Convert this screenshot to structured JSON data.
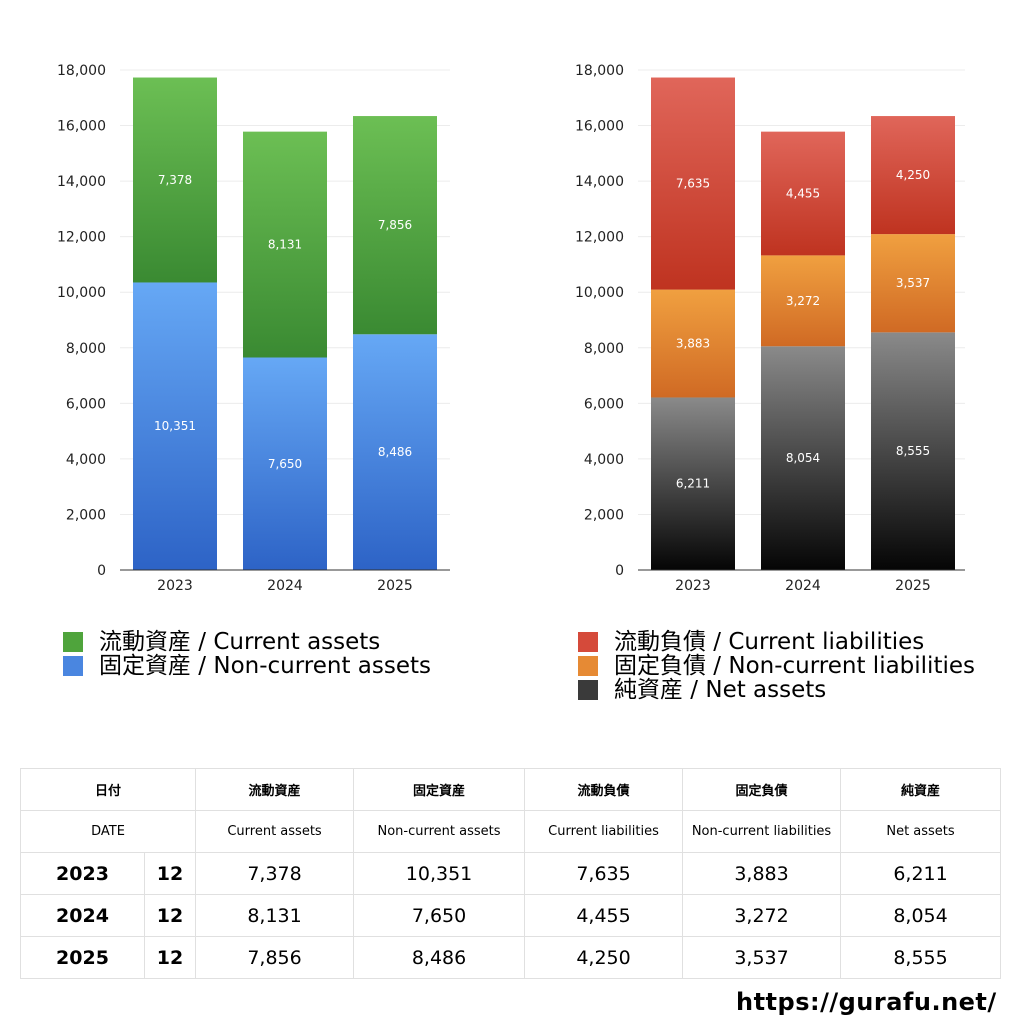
{
  "chart_data": [
    {
      "type": "bar",
      "stacked": true,
      "categories": [
        "2023",
        "2024",
        "2025"
      ],
      "ylim": [
        0,
        18000
      ],
      "yticks": [
        "0",
        "2,000",
        "4,000",
        "6,000",
        "8,000",
        "10,000",
        "12,000",
        "14,000",
        "16,000",
        "18,000"
      ],
      "grid": true,
      "series": [
        {
          "name": "固定資産 / Non-current assets",
          "values": [
            10351,
            7650,
            8486
          ],
          "labels": [
            "10,351",
            "7,650",
            "8,486"
          ],
          "color_top": "#66a8f5",
          "color_bottom": "#2d63c6"
        },
        {
          "name": "流動資産 / Current assets",
          "values": [
            7378,
            8131,
            7856
          ],
          "labels": [
            "7,378",
            "8,131",
            "7,856"
          ],
          "color_top": "#6cbf54",
          "color_bottom": "#3a8a32"
        }
      ],
      "legend_position": "bottom"
    },
    {
      "type": "bar",
      "stacked": true,
      "categories": [
        "2023",
        "2024",
        "2025"
      ],
      "ylim": [
        0,
        18000
      ],
      "yticks": [
        "0",
        "2,000",
        "4,000",
        "6,000",
        "8,000",
        "10,000",
        "12,000",
        "14,000",
        "16,000",
        "18,000"
      ],
      "grid": true,
      "series": [
        {
          "name": "純資産 / Net assets",
          "values": [
            6211,
            8054,
            8555
          ],
          "labels": [
            "6,211",
            "8,054",
            "8,555"
          ],
          "color_top": "#8a8a8a",
          "color_bottom": "#050505"
        },
        {
          "name": "固定負債 / Non-current liabilities",
          "values": [
            3883,
            3272,
            3537
          ],
          "labels": [
            "3,883",
            "3,272",
            "3,537"
          ],
          "color_top": "#f0a040",
          "color_bottom": "#d06a24"
        },
        {
          "name": "流動負債 / Current liabilities",
          "values": [
            7635,
            4455,
            4250
          ],
          "labels": [
            "7,635",
            "4,455",
            "4,250"
          ],
          "color_top": "#e0665a",
          "color_bottom": "#bf3320"
        }
      ],
      "legend_position": "bottom"
    }
  ],
  "legend_left": [
    {
      "label": "流動資産 / Current assets",
      "color": "#4fa43c"
    },
    {
      "label": "固定資産 / Non-current assets",
      "color": "#4a86e0"
    }
  ],
  "legend_right": [
    {
      "label": "流動負債 / Current liabilities",
      "color": "#d54a3a"
    },
    {
      "label": "固定負債 / Non-current liabilities",
      "color": "#e68a34"
    },
    {
      "label": "純資産 / Net assets",
      "color": "#3a3a3a"
    }
  ],
  "table": {
    "header_jp": [
      "日付",
      "流動資産",
      "固定資産",
      "流動負債",
      "固定負債",
      "純資産"
    ],
    "header_en": [
      "DATE",
      "Current assets",
      "Non-current assets",
      "Current liabilities",
      "Non-current liabilities",
      "Net assets"
    ],
    "rows": [
      {
        "year": "2023",
        "month": "12",
        "values": [
          "7,378",
          "10,351",
          "7,635",
          "3,883",
          "6,211"
        ]
      },
      {
        "year": "2024",
        "month": "12",
        "values": [
          "8,131",
          "7,650",
          "4,455",
          "3,272",
          "8,054"
        ]
      },
      {
        "year": "2025",
        "month": "12",
        "values": [
          "7,856",
          "8,486",
          "4,250",
          "3,537",
          "8,555"
        ]
      }
    ]
  },
  "site_url": "https://gurafu.net/"
}
